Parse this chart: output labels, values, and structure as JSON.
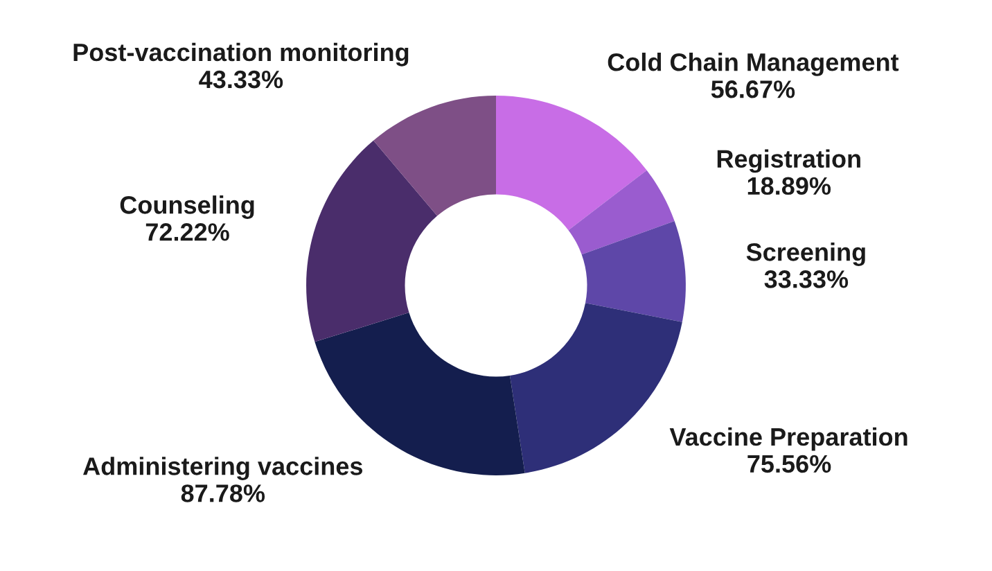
{
  "chart_data": {
    "type": "donut",
    "categories": [
      "Cold Chain Management",
      "Registration",
      "Screening",
      "Vaccine Preparation",
      "Administering vaccines",
      "Counseling",
      "Post-vaccination monitoring"
    ],
    "values": [
      56.67,
      18.89,
      33.33,
      75.56,
      87.78,
      72.22,
      43.33
    ],
    "value_labels": [
      "56.67%",
      "18.89%",
      "33.33%",
      "75.56%",
      "87.78%",
      "72.22%",
      "43.33%"
    ],
    "colors": [
      "#c86de6",
      "#9a5ccf",
      "#5e47a8",
      "#2e2f78",
      "#141e4e",
      "#4a2d6b",
      "#7e4f86"
    ],
    "legend": false
  }
}
